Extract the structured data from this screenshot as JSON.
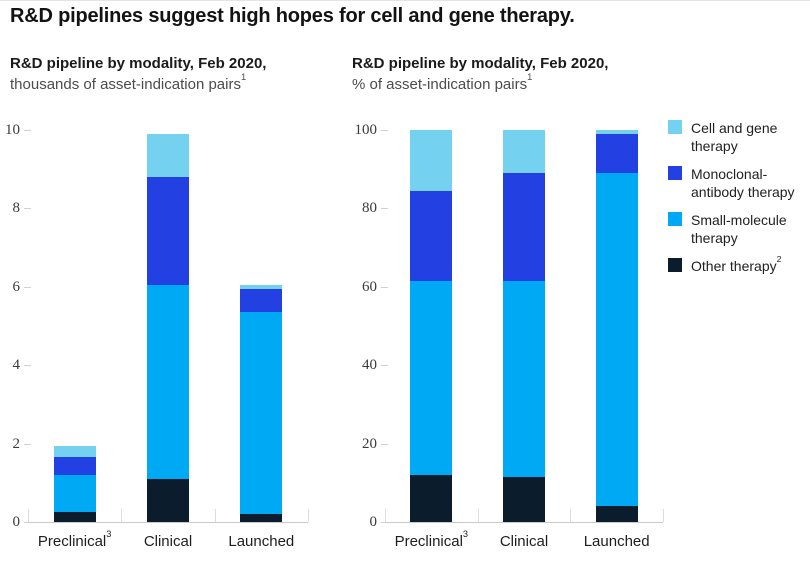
{
  "title": "R&D pipelines suggest high hopes for cell and gene therapy.",
  "colors": {
    "cell_gene": "#75D1F0",
    "mab": "#2340E3",
    "small_molecule": "#00A9F4",
    "other": "#0B1C2C",
    "axis_line": "#C9C9C9",
    "tick": "#D0D0D0"
  },
  "legend": {
    "items": [
      {
        "key": "cell_gene",
        "label": "Cell and gene\ntherapy"
      },
      {
        "key": "mab",
        "label": "Monoclonal-\nantibody therapy"
      },
      {
        "key": "small_molecule",
        "label": "Small-molecule\ntherapy"
      },
      {
        "key": "other",
        "label": "Other therapy",
        "sup": "2"
      }
    ]
  },
  "chart_data": [
    {
      "id": "left",
      "type": "bar",
      "stacked": true,
      "title_line1": "R&D pipeline by modality, Feb 2020,",
      "title_line2": "thousands of asset-indication pairs",
      "title_sup": "1",
      "ylim": [
        0,
        10
      ],
      "yticks": [
        0,
        2,
        4,
        6,
        8,
        10
      ],
      "grid": false,
      "categories": [
        {
          "label": "Preclinical",
          "sup": "3"
        },
        {
          "label": "Clinical"
        },
        {
          "label": "Launched"
        }
      ],
      "series": [
        {
          "name": "Other therapy",
          "key": "other",
          "values": [
            0.25,
            1.1,
            0.2
          ]
        },
        {
          "name": "Small-molecule therapy",
          "key": "small_molecule",
          "values": [
            0.95,
            4.95,
            5.15
          ]
        },
        {
          "name": "Monoclonal-antibody therapy",
          "key": "mab",
          "values": [
            0.45,
            2.75,
            0.6
          ]
        },
        {
          "name": "Cell and gene therapy",
          "key": "cell_gene",
          "values": [
            0.3,
            1.1,
            0.1
          ]
        }
      ],
      "stack_order": "bottom-to-top"
    },
    {
      "id": "right",
      "type": "bar",
      "stacked": true,
      "title_line1": "R&D pipeline by modality, Feb 2020,",
      "title_line2": "% of asset-indication pairs",
      "title_sup": "1",
      "ylim": [
        0,
        100
      ],
      "yticks": [
        0,
        20,
        40,
        60,
        80,
        100
      ],
      "grid": false,
      "categories": [
        {
          "label": "Preclinical",
          "sup": "3"
        },
        {
          "label": "Clinical"
        },
        {
          "label": "Launched"
        }
      ],
      "series": [
        {
          "name": "Other therapy",
          "key": "other",
          "values": [
            12,
            11.5,
            4
          ]
        },
        {
          "name": "Small-molecule therapy",
          "key": "small_molecule",
          "values": [
            49.5,
            50,
            85
          ]
        },
        {
          "name": "Monoclonal-antibody therapy",
          "key": "mab",
          "values": [
            23,
            27.5,
            10
          ]
        },
        {
          "name": "Cell and gene therapy",
          "key": "cell_gene",
          "values": [
            15.5,
            11,
            1
          ]
        }
      ],
      "stack_order": "bottom-to-top"
    }
  ]
}
